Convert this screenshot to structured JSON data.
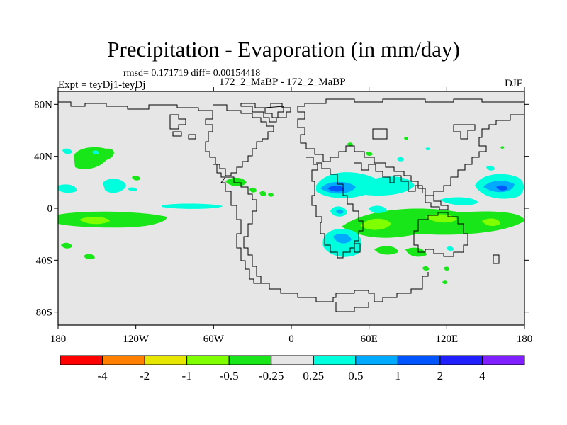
{
  "title": "Precipitation - Evaporation (in mm/day)",
  "stats_line": "rmsd= 0.171719 diff= 0.00154418",
  "experiment": "Expt = teyDj1-teyDj",
  "comparison": "172_2_MaBP - 172_2_MaBP",
  "season": "DJF",
  "map": {
    "projection": "cylindrical equidistant",
    "lon_range": [
      -180,
      180
    ],
    "lat_range": [
      -90,
      90
    ],
    "background_color": "#e6e6e6",
    "coastline_color": "#000000",
    "y_ticks": [
      {
        "label": "80N",
        "lat": 80
      },
      {
        "label": "40N",
        "lat": 40
      },
      {
        "label": "0",
        "lat": 0
      },
      {
        "label": "40S",
        "lat": -40
      },
      {
        "label": "80S",
        "lat": -80
      }
    ],
    "x_ticks": [
      {
        "label": "180",
        "lon": -180
      },
      {
        "label": "120W",
        "lon": -120
      },
      {
        "label": "60W",
        "lon": -60
      },
      {
        "label": "0",
        "lon": 0
      },
      {
        "label": "60E",
        "lon": 60
      },
      {
        "label": "120E",
        "lon": 120
      },
      {
        "label": "180",
        "lon": 180
      }
    ]
  },
  "colorbar": {
    "colors": [
      "#ff0000",
      "#ff8000",
      "#e6e600",
      "#80ff00",
      "#19e619",
      "#e6e6e6",
      "#00ffdd",
      "#00aaff",
      "#0055ff",
      "#2020ff",
      "#8020ff"
    ],
    "labels": [
      "-4",
      "-2",
      "-1",
      "-0.5",
      "-0.25",
      "0.25",
      "0.5",
      "1",
      "2",
      "4"
    ]
  }
}
